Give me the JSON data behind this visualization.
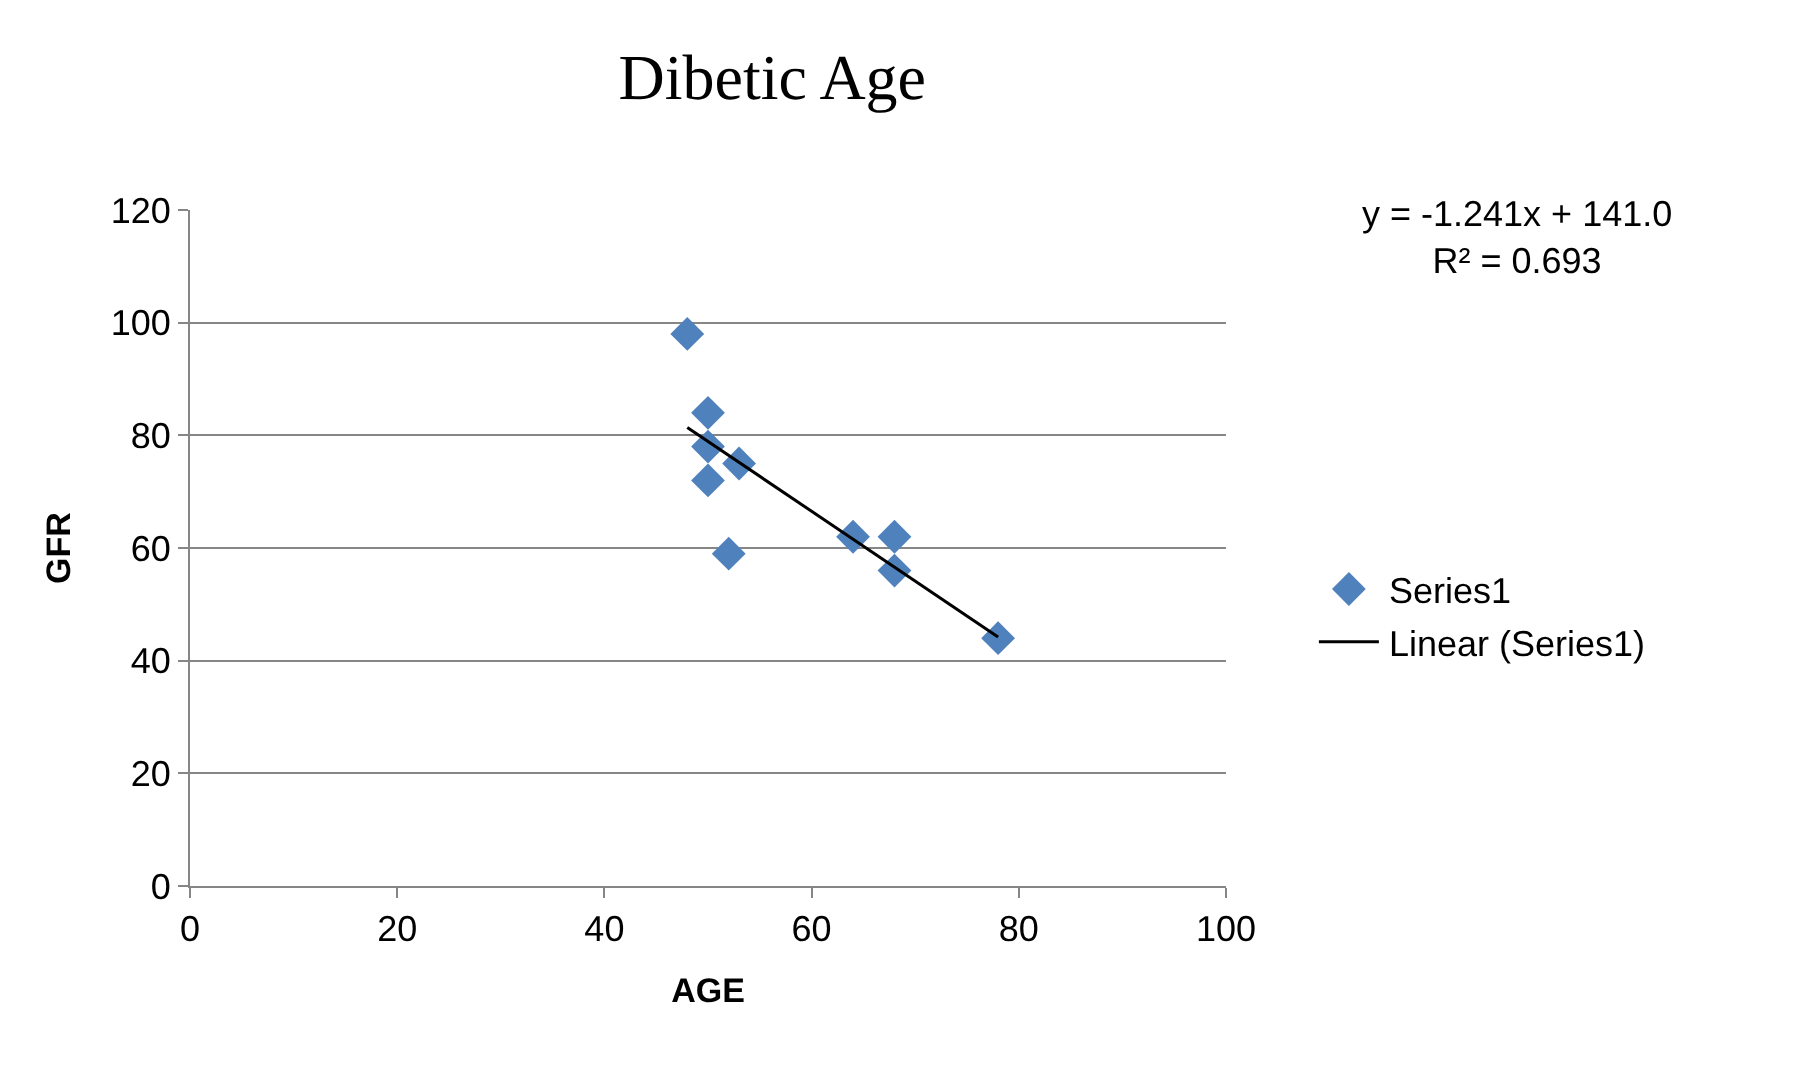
{
  "chart_data": {
    "type": "scatter",
    "title": "Dibetic Age",
    "xlabel": "AGE",
    "ylabel": "GFR",
    "xlim": [
      0,
      100
    ],
    "xticks": [
      0,
      20,
      40,
      60,
      80,
      100
    ],
    "ylim": [
      0,
      120
    ],
    "yticks": [
      0,
      20,
      40,
      60,
      80,
      100,
      120
    ],
    "grid": "y",
    "legend": "right",
    "marker": "diamond",
    "annotations": [
      "y = -1.241x + 141.0\nR² = 0.693"
    ],
    "series": [
      {
        "name": "Series1",
        "color": "#4f81bd",
        "x": [
          48,
          50,
          50,
          53,
          50,
          52,
          64,
          68,
          68,
          78
        ],
        "values": [
          98,
          84,
          78,
          75,
          72,
          59,
          62,
          62,
          56,
          44
        ]
      },
      {
        "name": "Linear (Series1)",
        "color": "#000000",
        "type": "line",
        "marker": "none",
        "x": [
          48,
          78
        ],
        "values": [
          81.4,
          44.2
        ]
      }
    ]
  }
}
